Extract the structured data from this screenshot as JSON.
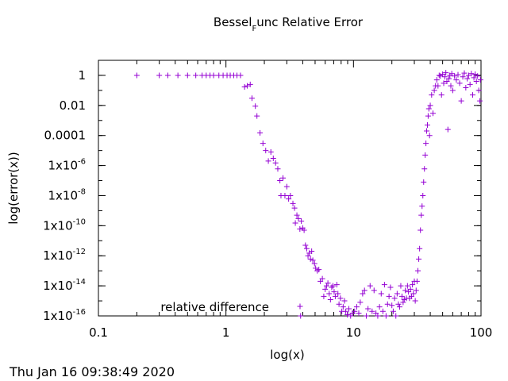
{
  "timestamp": "Thu Jan 16 09:38:49 2020",
  "chart_data": {
    "type": "scatter",
    "title": "Bessel_Func Relative Error",
    "title_main": "Bessel",
    "title_sub": "F",
    "title_rest": "unc Relative Error",
    "xlabel": "log(x)",
    "ylabel": "log(error(x))",
    "xscale": "log",
    "yscale": "log",
    "xlim": [
      0.1,
      100
    ],
    "ylim": [
      1e-16,
      10
    ],
    "grid": false,
    "legend_position": "bottom-left",
    "point_color": "#9400d3",
    "marker": "+",
    "x_ticks": [
      {
        "value": 0.1,
        "label": "0.1"
      },
      {
        "value": 1,
        "label": "1"
      },
      {
        "value": 10,
        "label": "10"
      },
      {
        "value": 100,
        "label": "100"
      }
    ],
    "y_ticks": [
      {
        "value": 1e-16,
        "base": "1x10",
        "exp": "-16"
      },
      {
        "value": 1e-14,
        "base": "1x10",
        "exp": "-14"
      },
      {
        "value": 1e-12,
        "base": "1x10",
        "exp": "-12"
      },
      {
        "value": 1e-10,
        "base": "1x10",
        "exp": "-10"
      },
      {
        "value": 1e-08,
        "base": "1x10",
        "exp": "-8"
      },
      {
        "value": 1e-06,
        "base": "1x10",
        "exp": "-6"
      },
      {
        "value": 0.0001,
        "base": "0.0001",
        "exp": ""
      },
      {
        "value": 0.01,
        "base": "0.01",
        "exp": ""
      },
      {
        "value": 1,
        "base": "1",
        "exp": ""
      }
    ],
    "series": [
      {
        "name": "relative difference",
        "points": [
          [
            0.2,
            1
          ],
          [
            0.3,
            1
          ],
          [
            0.35,
            1
          ],
          [
            0.42,
            1
          ],
          [
            0.5,
            1
          ],
          [
            0.58,
            1
          ],
          [
            0.65,
            1
          ],
          [
            0.7,
            1
          ],
          [
            0.75,
            1
          ],
          [
            0.8,
            1
          ],
          [
            0.88,
            1
          ],
          [
            0.95,
            1
          ],
          [
            1.02,
            1
          ],
          [
            1.08,
            1
          ],
          [
            1.15,
            1
          ],
          [
            1.22,
            1
          ],
          [
            1.3,
            1
          ],
          [
            1.4,
            0.17
          ],
          [
            1.47,
            0.2
          ],
          [
            1.55,
            0.25
          ],
          [
            1.6,
            0.03
          ],
          [
            1.7,
            0.009
          ],
          [
            1.75,
            0.002
          ],
          [
            1.85,
            0.00015
          ],
          [
            1.95,
            3e-05
          ],
          [
            2.05,
            1e-05
          ],
          [
            2.15,
            2e-06
          ],
          [
            2.25,
            8e-06
          ],
          [
            2.35,
            3e-06
          ],
          [
            2.45,
            1.5e-06
          ],
          [
            2.55,
            6e-07
          ],
          [
            2.65,
            1e-07
          ],
          [
            2.7,
            1e-08
          ],
          [
            2.8,
            1.5e-07
          ],
          [
            2.9,
            1e-08
          ],
          [
            3.0,
            4e-08
          ],
          [
            3.1,
            6e-09
          ],
          [
            3.2,
            1e-08
          ],
          [
            3.35,
            3e-09
          ],
          [
            3.45,
            1.5e-09
          ],
          [
            3.5,
            1.5e-10
          ],
          [
            3.6,
            5e-10
          ],
          [
            3.7,
            3e-10
          ],
          [
            3.8,
            6e-11
          ],
          [
            3.85,
            1e-16
          ],
          [
            3.9,
            2e-10
          ],
          [
            4.0,
            7e-11
          ],
          [
            4.1,
            5e-11
          ],
          [
            4.2,
            5e-12
          ],
          [
            4.3,
            3e-12
          ],
          [
            4.4,
            1e-12
          ],
          [
            4.5,
            1.5e-12
          ],
          [
            4.6,
            6e-13
          ],
          [
            4.7,
            2e-12
          ],
          [
            4.8,
            5e-13
          ],
          [
            4.95,
            3e-13
          ],
          [
            5.05,
            1.5e-13
          ],
          [
            5.2,
            1e-13
          ],
          [
            5.35,
            1.2e-13
          ],
          [
            5.5,
            2e-14
          ],
          [
            5.7,
            3e-14
          ],
          [
            5.85,
            2e-15
          ],
          [
            6.0,
            6e-15
          ],
          [
            6.15,
            1e-14
          ],
          [
            6.3,
            1.5e-14
          ],
          [
            6.45,
            3e-15
          ],
          [
            6.6,
            1.2e-15
          ],
          [
            6.75,
            8e-15
          ],
          [
            6.9,
            1e-14
          ],
          [
            7.05,
            4e-15
          ],
          [
            7.2,
            2e-15
          ],
          [
            7.4,
            1.2e-14
          ],
          [
            7.55,
            3e-15
          ],
          [
            7.7,
            6e-16
          ],
          [
            7.9,
            1.5e-15
          ],
          [
            8.1,
            2e-16
          ],
          [
            8.3,
            4e-16
          ],
          [
            8.5,
            1e-15
          ],
          [
            8.7,
            2e-16
          ],
          [
            8.95,
            1.2e-16
          ],
          [
            9.2,
            3e-16
          ],
          [
            9.5,
            1e-16
          ],
          [
            9.8,
            1.5e-16
          ],
          [
            10.2,
            2e-16
          ],
          [
            10.6,
            4e-16
          ],
          [
            11.0,
            1.5e-16
          ],
          [
            11.3,
            8e-16
          ],
          [
            11.8,
            3e-15
          ],
          [
            12.2,
            5e-15
          ],
          [
            12.6,
            1e-16
          ],
          [
            13.0,
            3e-16
          ],
          [
            13.5,
            1e-14
          ],
          [
            14.0,
            2e-16
          ],
          [
            14.5,
            5e-15
          ],
          [
            15.0,
            1.5e-16
          ],
          [
            15.5,
            1e-16
          ],
          [
            16.0,
            4e-16
          ],
          [
            16.5,
            3e-15
          ],
          [
            17.0,
            2e-16
          ],
          [
            17.5,
            1.2e-14
          ],
          [
            18.0,
            1e-16
          ],
          [
            18.5,
            6e-16
          ],
          [
            19.0,
            2e-15
          ],
          [
            19.5,
            8e-15
          ],
          [
            20.0,
            5e-16
          ],
          [
            20.5,
            2e-16
          ],
          [
            21.0,
            1.5e-15
          ],
          [
            21.5,
            1e-16
          ],
          [
            22.0,
            3e-15
          ],
          [
            22.5,
            6e-16
          ],
          [
            23.0,
            4e-16
          ],
          [
            23.5,
            1e-14
          ],
          [
            24.0,
            2e-15
          ],
          [
            24.5,
            8e-16
          ],
          [
            25.0,
            1.2e-15
          ],
          [
            25.5,
            5e-15
          ],
          [
            26.0,
            1.5e-15
          ],
          [
            26.5,
            1e-14
          ],
          [
            27.0,
            4e-15
          ],
          [
            27.5,
            1.5e-15
          ],
          [
            28.0,
            6e-15
          ],
          [
            28.5,
            2e-15
          ],
          [
            29.0,
            1.2e-14
          ],
          [
            29.5,
            3e-15
          ],
          [
            30.0,
            2e-14
          ],
          [
            30.5,
            1e-15
          ],
          [
            31.0,
            5e-15
          ],
          [
            31.5,
            2e-14
          ],
          [
            32.0,
            1e-13
          ],
          [
            32.5,
            6e-13
          ],
          [
            33.0,
            3e-12
          ],
          [
            33.5,
            5e-11
          ],
          [
            34.0,
            5e-10
          ],
          [
            34.5,
            2e-09
          ],
          [
            35.0,
            1e-08
          ],
          [
            35.5,
            8e-08
          ],
          [
            36.0,
            6e-07
          ],
          [
            36.5,
            5e-06
          ],
          [
            37.0,
            3e-05
          ],
          [
            37.5,
            0.0002
          ],
          [
            38.0,
            0.0005
          ],
          [
            38.5,
            0.002
          ],
          [
            39.0,
            0.006
          ],
          [
            39.5,
            0.0001
          ],
          [
            40.0,
            0.01
          ],
          [
            41.0,
            0.05
          ],
          [
            42.0,
            0.003
          ],
          [
            43.0,
            0.1
          ],
          [
            44.0,
            0.2
          ],
          [
            45.0,
            0.5
          ],
          [
            46.0,
            0.2
          ],
          [
            47.0,
            1.0
          ],
          [
            48.0,
            0.9
          ],
          [
            49.0,
            0.05
          ],
          [
            50.0,
            1.2
          ],
          [
            51.0,
            0.3
          ],
          [
            52.0,
            0.8
          ],
          [
            53.0,
            1.5
          ],
          [
            54.0,
            0.4
          ],
          [
            55.0,
            0.00025
          ],
          [
            56.0,
            0.6
          ],
          [
            57.0,
            1.0
          ],
          [
            58.0,
            0.2
          ],
          [
            59.0,
            1.3
          ],
          [
            60.0,
            0.1
          ],
          [
            62.0,
            0.9
          ],
          [
            64.0,
            0.5
          ],
          [
            66.0,
            1.1
          ],
          [
            68.0,
            0.3
          ],
          [
            70.0,
            0.02
          ],
          [
            72.0,
            0.8
          ],
          [
            74.0,
            1.4
          ],
          [
            76.0,
            0.15
          ],
          [
            78.0,
            0.6
          ],
          [
            80.0,
            1.0
          ],
          [
            82.0,
            0.25
          ],
          [
            84.0,
            1.3
          ],
          [
            86.0,
            0.05
          ],
          [
            88.0,
            0.7
          ],
          [
            90.0,
            1.2
          ],
          [
            92.0,
            0.4
          ],
          [
            94.0,
            0.9
          ],
          [
            96.0,
            0.1
          ],
          [
            98.0,
            0.02
          ],
          [
            99.0,
            0.5
          ]
        ]
      }
    ]
  }
}
